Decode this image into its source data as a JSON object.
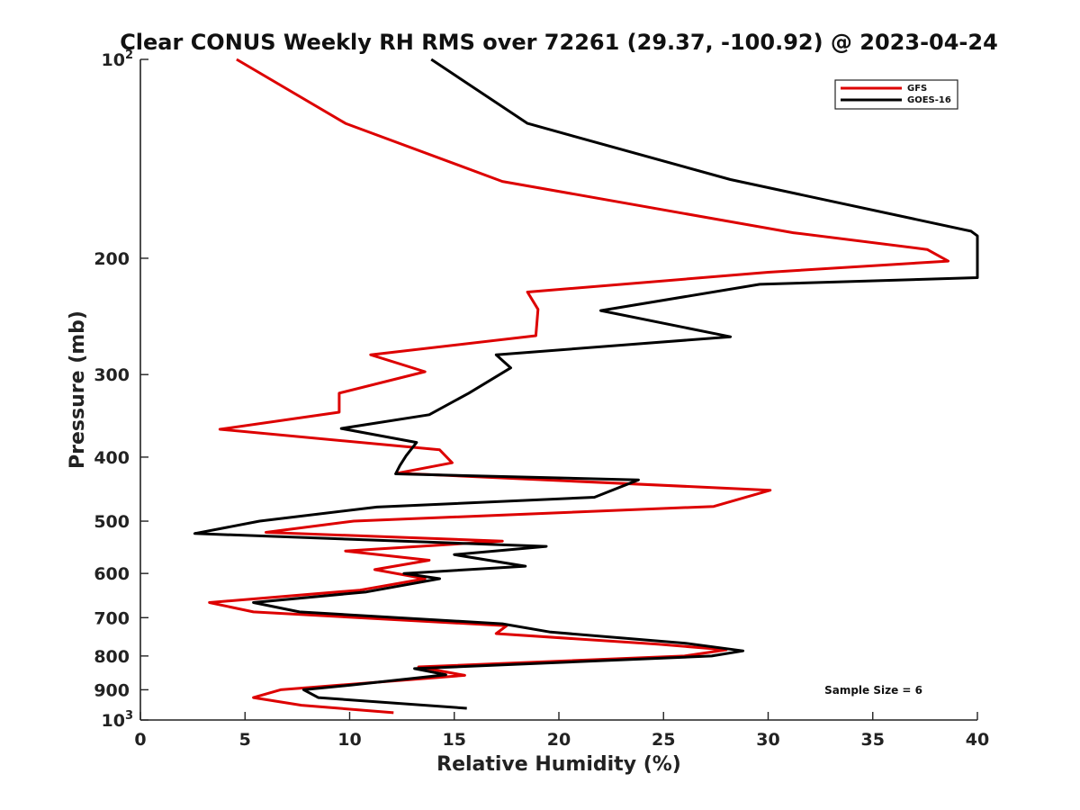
{
  "chart_data": {
    "type": "line",
    "title": "Clear CONUS Weekly RH RMS over 72261 (29.37, -100.92) @ 2023-04-24",
    "xlabel": "Relative Humidity (%)",
    "ylabel": "Pressure (mb)",
    "xlim": [
      0,
      40
    ],
    "ylim": [
      100,
      1000
    ],
    "yscale": "log",
    "y_reversed": true,
    "x_ticks": [
      0,
      5,
      10,
      15,
      20,
      25,
      30,
      35,
      40
    ],
    "y_ticks": [
      {
        "value": 100,
        "base": "10",
        "exp": "2"
      },
      {
        "value": 200,
        "label": "200"
      },
      {
        "value": 300,
        "label": "300"
      },
      {
        "value": 400,
        "label": "400"
      },
      {
        "value": 500,
        "label": "500"
      },
      {
        "value": 600,
        "label": "600"
      },
      {
        "value": 700,
        "label": "700"
      },
      {
        "value": 800,
        "label": "800"
      },
      {
        "value": 900,
        "label": "900"
      },
      {
        "value": 1000,
        "base": "10",
        "exp": "3"
      }
    ],
    "grid": false,
    "legend_position": "top-right",
    "annotation": "Sample Size = 6",
    "series": [
      {
        "name": "GFS",
        "color": "#dd0000",
        "points": [
          [
            4.6,
            100
          ],
          [
            9.8,
            125
          ],
          [
            17.3,
            153
          ],
          [
            31.2,
            183
          ],
          [
            37.6,
            194
          ],
          [
            38.6,
            202
          ],
          [
            30.0,
            210
          ],
          [
            18.5,
            225
          ],
          [
            19.0,
            239
          ],
          [
            18.9,
            262
          ],
          [
            11.0,
            280
          ],
          [
            13.6,
            297
          ],
          [
            9.5,
            320
          ],
          [
            9.5,
            342
          ],
          [
            3.8,
            363
          ],
          [
            14.3,
            390
          ],
          [
            14.9,
            408
          ],
          [
            12.3,
            423
          ],
          [
            30.1,
            449
          ],
          [
            27.4,
            475
          ],
          [
            10.2,
            500
          ],
          [
            6.0,
            520
          ],
          [
            17.3,
            536
          ],
          [
            9.8,
            555
          ],
          [
            13.8,
            573
          ],
          [
            11.2,
            592
          ],
          [
            13.6,
            611
          ],
          [
            10.5,
            636
          ],
          [
            3.3,
            664
          ],
          [
            5.4,
            686
          ],
          [
            17.5,
            720
          ],
          [
            17.0,
            740
          ],
          [
            24.8,
            768
          ],
          [
            28.0,
            783
          ],
          [
            26.0,
            800
          ],
          [
            13.3,
            831
          ],
          [
            15.5,
            856
          ],
          [
            6.7,
            900
          ],
          [
            5.4,
            925
          ],
          [
            7.7,
            950
          ],
          [
            12.1,
            975
          ]
        ]
      },
      {
        "name": "GOES-16",
        "color": "#000000",
        "points": [
          [
            13.9,
            100
          ],
          [
            18.5,
            125
          ],
          [
            28.2,
            152
          ],
          [
            39.7,
            182
          ],
          [
            40.0,
            185
          ],
          [
            40.0,
            214
          ],
          [
            29.6,
            219
          ],
          [
            22.0,
            240
          ],
          [
            28.2,
            263
          ],
          [
            17.0,
            280
          ],
          [
            17.7,
            293
          ],
          [
            15.7,
            320
          ],
          [
            13.8,
            345
          ],
          [
            9.6,
            362
          ],
          [
            13.2,
            380
          ],
          [
            12.7,
            398
          ],
          [
            12.4,
            412
          ],
          [
            12.2,
            424
          ],
          [
            23.8,
            433
          ],
          [
            21.7,
            460
          ],
          [
            11.3,
            476
          ],
          [
            5.7,
            500
          ],
          [
            2.6,
            522
          ],
          [
            19.4,
            546
          ],
          [
            15.0,
            562
          ],
          [
            18.4,
            585
          ],
          [
            12.6,
            600
          ],
          [
            14.3,
            611
          ],
          [
            10.8,
            640
          ],
          [
            5.4,
            664
          ],
          [
            7.6,
            686
          ],
          [
            17.3,
            715
          ],
          [
            19.6,
            736
          ],
          [
            26.0,
            765
          ],
          [
            28.8,
            786
          ],
          [
            27.3,
            800
          ],
          [
            13.1,
            836
          ],
          [
            14.6,
            854
          ],
          [
            10.1,
            885
          ],
          [
            7.8,
            900
          ],
          [
            8.5,
            925
          ],
          [
            15.6,
            960
          ]
        ]
      }
    ]
  }
}
